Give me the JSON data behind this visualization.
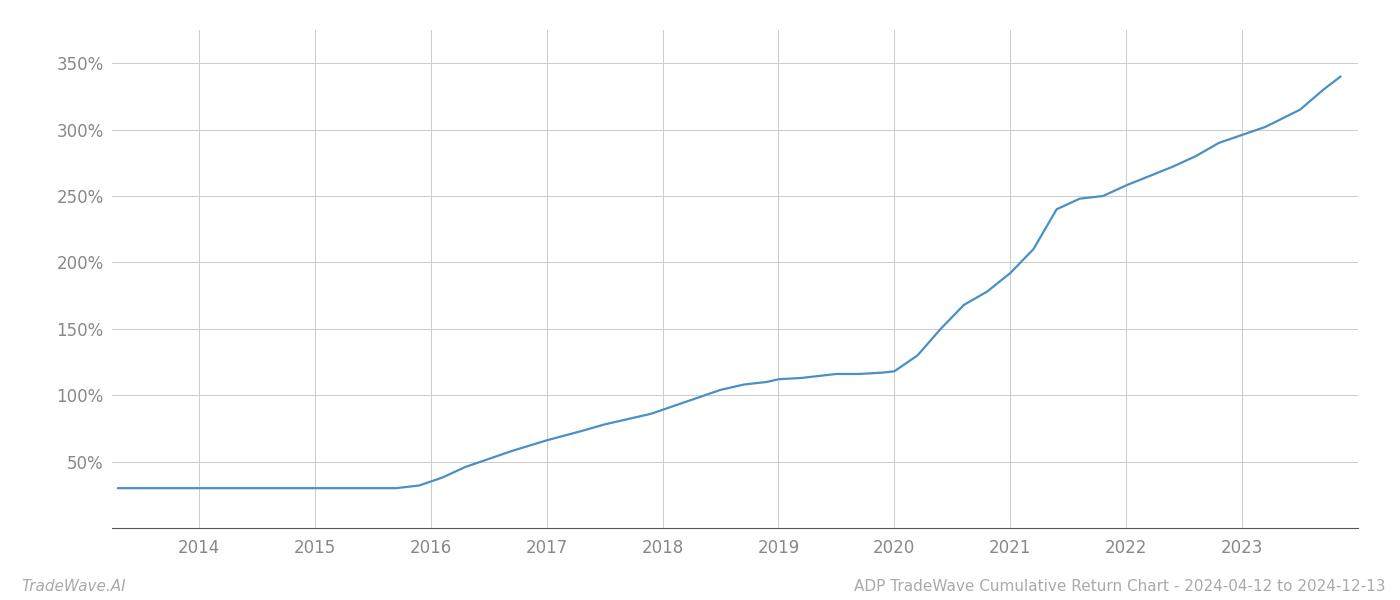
{
  "title": "ADP TradeWave Cumulative Return Chart - 2024-04-12 to 2024-12-13",
  "watermark": "TradeWave.AI",
  "line_color": "#4a90c4",
  "background_color": "#ffffff",
  "grid_color": "#cccccc",
  "x_years": [
    2014,
    2015,
    2016,
    2017,
    2018,
    2019,
    2020,
    2021,
    2022,
    2023
  ],
  "x_data": [
    2013.3,
    2013.5,
    2013.7,
    2013.9,
    2014.0,
    2014.2,
    2014.5,
    2014.8,
    2015.0,
    2015.2,
    2015.5,
    2015.7,
    2015.9,
    2016.1,
    2016.3,
    2016.5,
    2016.7,
    2017.0,
    2017.3,
    2017.5,
    2017.7,
    2017.9,
    2018.1,
    2018.3,
    2018.5,
    2018.7,
    2018.9,
    2019.0,
    2019.2,
    2019.4,
    2019.5,
    2019.7,
    2019.9,
    2020.0,
    2020.2,
    2020.4,
    2020.6,
    2020.8,
    2021.0,
    2021.2,
    2021.4,
    2021.6,
    2021.8,
    2022.0,
    2022.2,
    2022.4,
    2022.6,
    2022.8,
    2023.0,
    2023.2,
    2023.5,
    2023.7,
    2023.85
  ],
  "y_data": [
    30,
    30,
    30,
    30,
    30,
    30,
    30,
    30,
    30,
    30,
    30,
    30,
    32,
    38,
    46,
    52,
    58,
    66,
    73,
    78,
    82,
    86,
    92,
    98,
    104,
    108,
    110,
    112,
    113,
    115,
    116,
    116,
    117,
    118,
    130,
    150,
    168,
    178,
    192,
    210,
    240,
    248,
    250,
    258,
    265,
    272,
    280,
    290,
    296,
    302,
    315,
    330,
    340
  ],
  "ylim": [
    0,
    375
  ],
  "yticks": [
    50,
    100,
    150,
    200,
    250,
    300,
    350
  ],
  "ytick_labels": [
    "50%",
    "100%",
    "150%",
    "200%",
    "250%",
    "300%",
    "350%"
  ],
  "title_fontsize": 11,
  "watermark_fontsize": 11,
  "tick_fontsize": 12,
  "line_width": 1.6,
  "xlim_left": 2013.25,
  "xlim_right": 2024.0
}
